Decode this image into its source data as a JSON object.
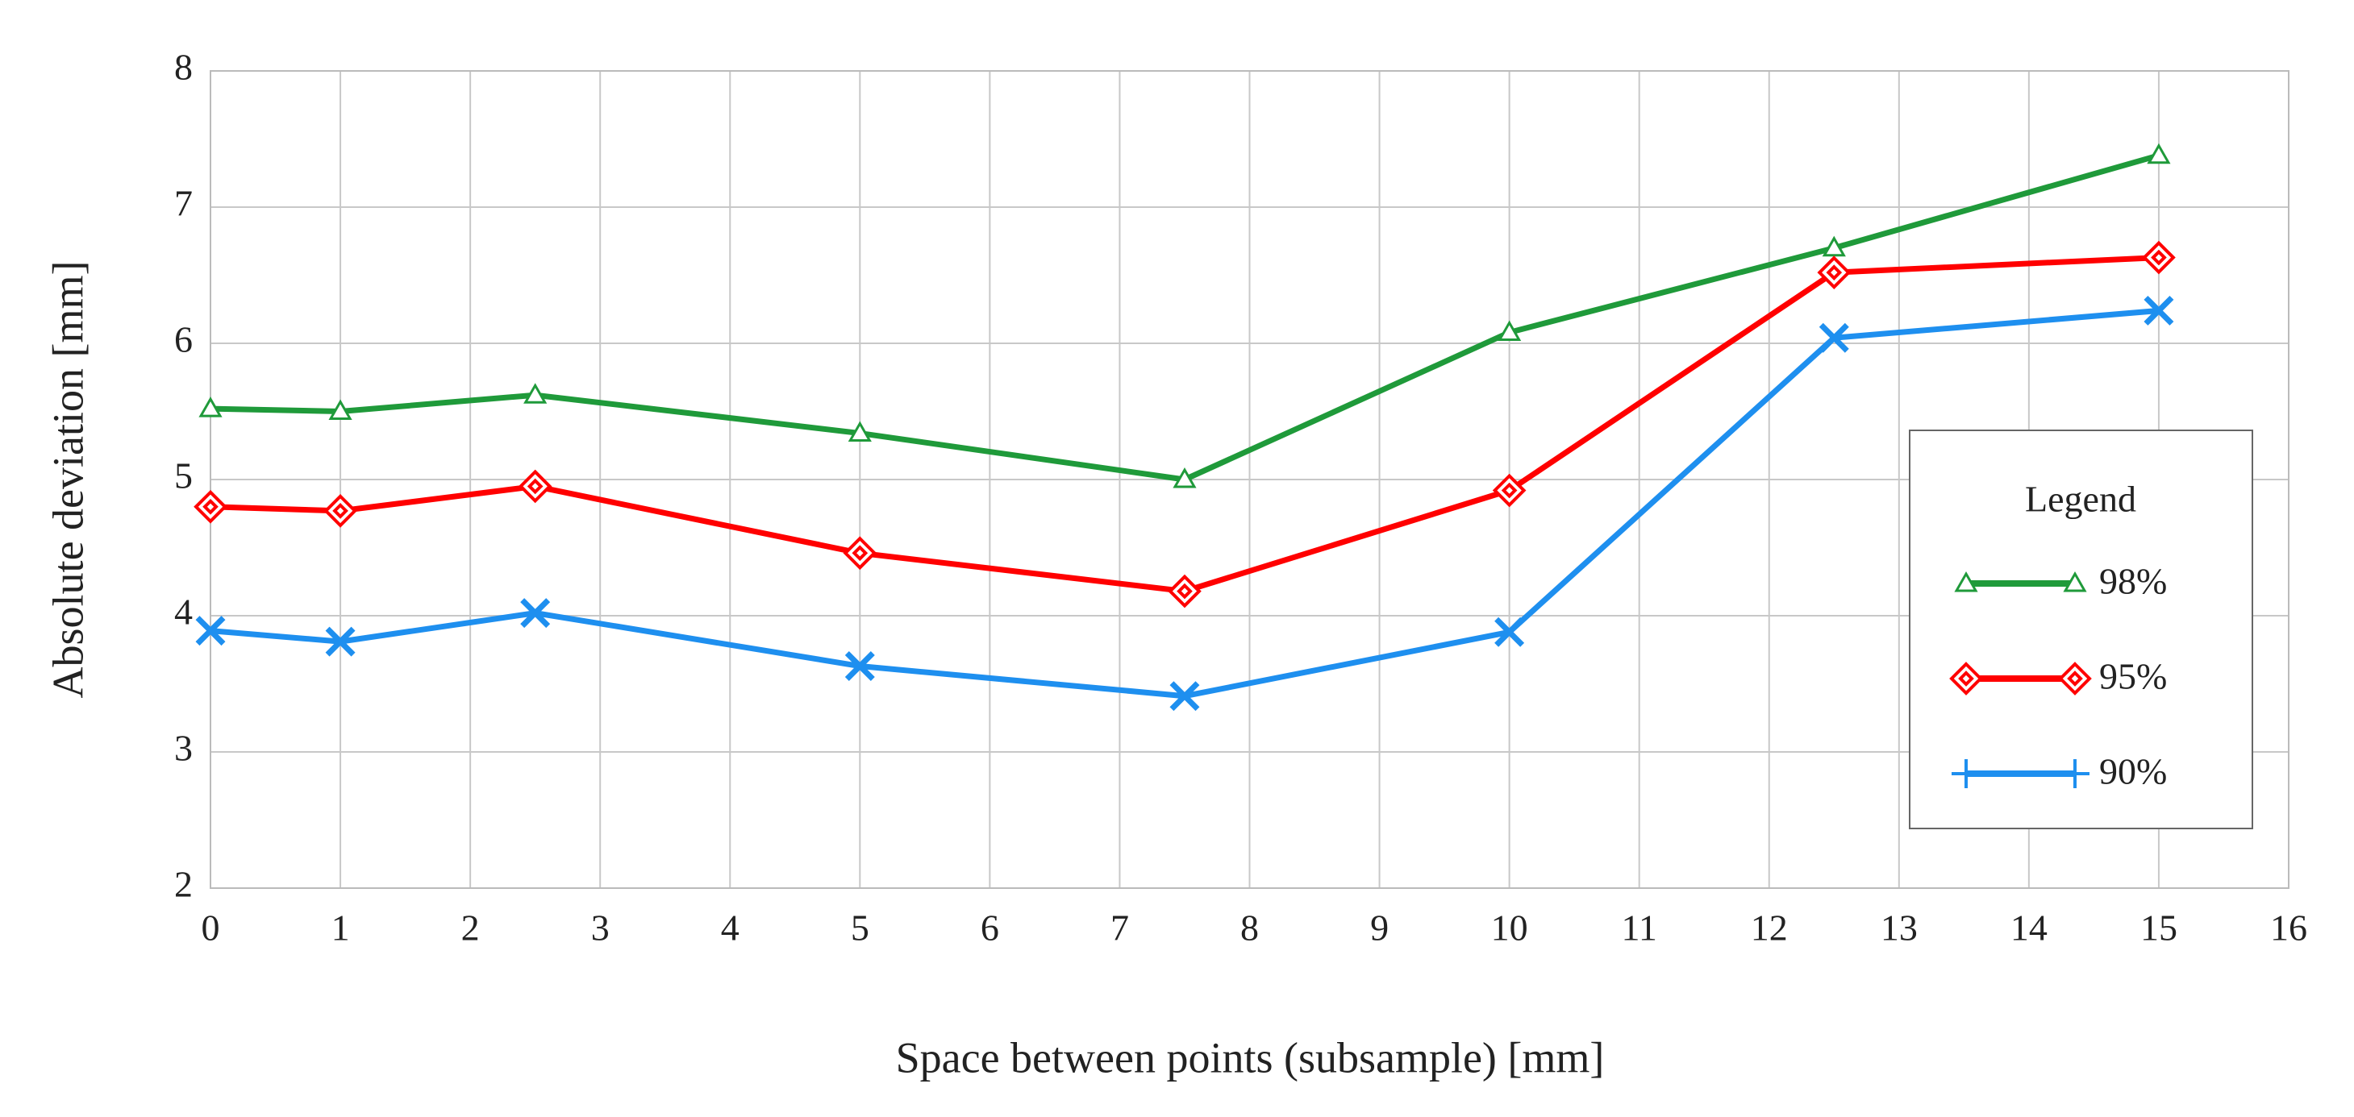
{
  "chart_data": {
    "type": "line",
    "x_label": "Space between points (subsample) [mm]",
    "y_label": "Absolute deviation [mm]",
    "legend_title": "Legend",
    "legend_position": "right",
    "grid": true,
    "x": [
      0,
      1,
      2.5,
      5,
      7.5,
      10,
      12.5,
      15
    ],
    "series": [
      {
        "name": "98%",
        "color": "#1f9a3a",
        "marker": "triangle",
        "values": [
          5.52,
          5.5,
          5.62,
          5.34,
          5.0,
          6.08,
          6.7,
          7.38
        ]
      },
      {
        "name": "95%",
        "color": "#ff0000",
        "marker": "diamond",
        "values": [
          4.8,
          4.77,
          4.95,
          4.46,
          4.18,
          4.92,
          6.52,
          6.63
        ]
      },
      {
        "name": "90%",
        "color": "#1e8fef",
        "marker": "cross",
        "values": [
          3.89,
          3.81,
          4.02,
          3.63,
          3.41,
          3.88,
          6.04,
          6.24
        ]
      }
    ],
    "xlim": [
      0,
      16
    ],
    "xticks": [
      0,
      1,
      2,
      3,
      4,
      5,
      6,
      7,
      8,
      9,
      10,
      11,
      12,
      13,
      14,
      15,
      16
    ],
    "ylim": [
      2,
      8
    ],
    "yticks": [
      2,
      3,
      4,
      5,
      6,
      7,
      8
    ]
  }
}
